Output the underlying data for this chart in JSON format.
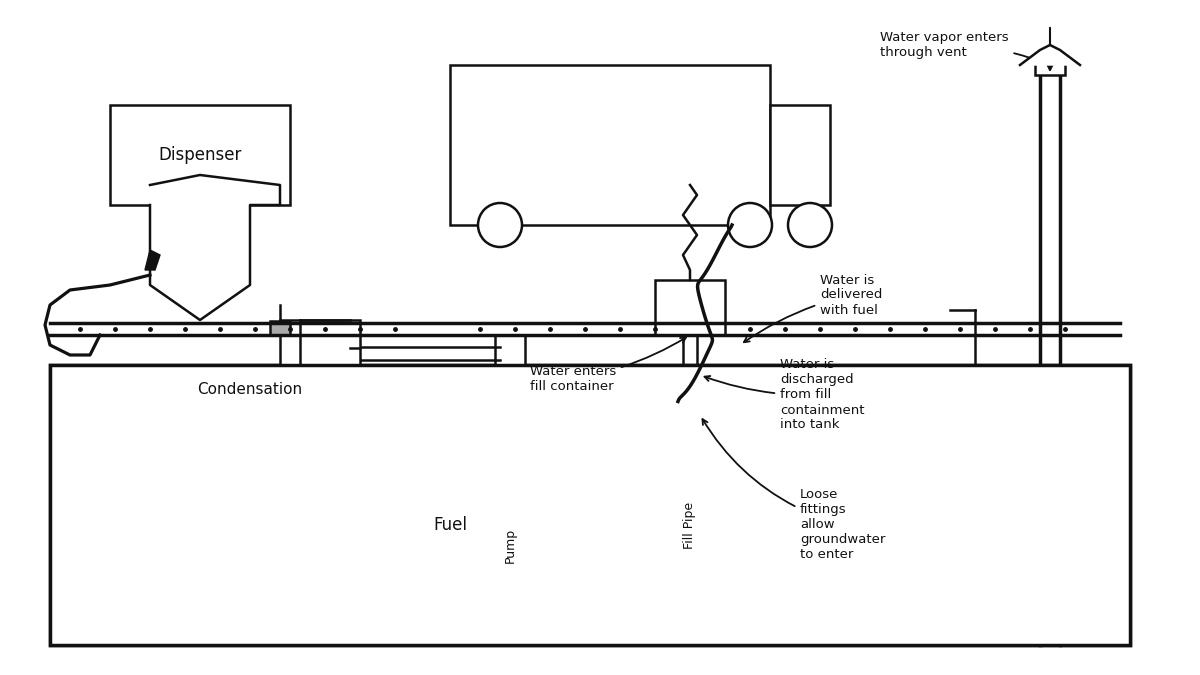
{
  "bg_color": "#f5f5f5",
  "line_color": "#111111",
  "annotations": {
    "water_vapor": "Water vapor enters\nthrough vent",
    "water_delivered": "Water is\ndelivered\nwith fuel",
    "water_enters": "Water enters\nfill container",
    "water_discharged": "Water is\ndischarged\nfrom fill\ncontainment\ninto tank",
    "condensation": "Condensation",
    "fuel": "Fuel",
    "pump": "Pump",
    "fill_pipe": "Fill Pipe",
    "loose_fittings": "Loose\nfittings\nallow\ngroundwater\nto enter",
    "dispenser": "Dispenser"
  }
}
